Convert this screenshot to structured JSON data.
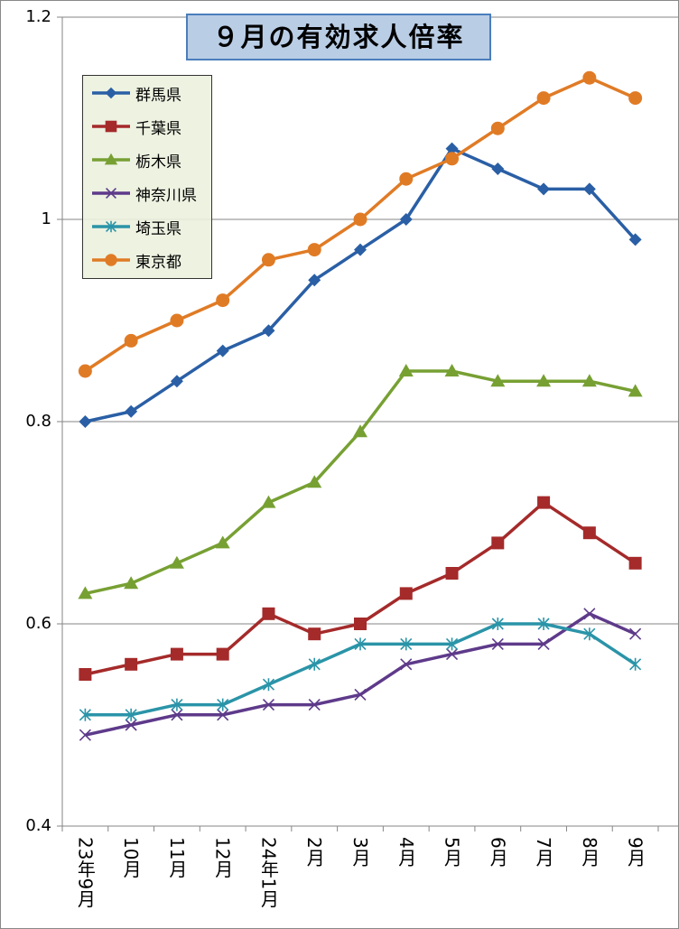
{
  "chart_data": {
    "type": "line",
    "title": "９月の有効求人倍率",
    "categories": [
      "23年9月",
      "10月",
      "11月",
      "12月",
      "24年1月",
      "2月",
      "3月",
      "4月",
      "5月",
      "6月",
      "7月",
      "8月",
      "9月"
    ],
    "ylim": [
      0.4,
      1.2
    ],
    "yticks": [
      "0.4",
      "0.6",
      "0.8",
      "1",
      "1.2"
    ],
    "ytick_values": [
      0.4,
      0.6,
      0.8,
      1.0,
      1.2
    ],
    "grid": true,
    "legend_position": "top-left",
    "series": [
      {
        "name": "群馬県",
        "color": "#2a5fa5",
        "marker": "diamond",
        "values": [
          0.8,
          0.81,
          0.84,
          0.87,
          0.89,
          0.94,
          0.97,
          1.0,
          1.07,
          1.05,
          1.03,
          1.03,
          0.98
        ]
      },
      {
        "name": "千葉県",
        "color": "#a52a2a",
        "marker": "square",
        "values": [
          0.55,
          0.56,
          0.57,
          0.57,
          0.61,
          0.59,
          0.6,
          0.63,
          0.65,
          0.68,
          0.72,
          0.69,
          0.66
        ]
      },
      {
        "name": "栃木県",
        "color": "#77a033",
        "marker": "triangle",
        "values": [
          0.63,
          0.64,
          0.66,
          0.68,
          0.72,
          0.74,
          0.79,
          0.85,
          0.85,
          0.84,
          0.84,
          0.84,
          0.83
        ]
      },
      {
        "name": "神奈川県",
        "color": "#5e3a8a",
        "marker": "x",
        "values": [
          0.49,
          0.5,
          0.51,
          0.51,
          0.52,
          0.52,
          0.53,
          0.56,
          0.57,
          0.58,
          0.58,
          0.61,
          0.59
        ]
      },
      {
        "name": "埼玉県",
        "color": "#2a94a8",
        "marker": "star",
        "values": [
          0.51,
          0.51,
          0.52,
          0.52,
          0.54,
          0.56,
          0.58,
          0.58,
          0.58,
          0.6,
          0.6,
          0.59,
          0.56
        ]
      },
      {
        "name": "東京都",
        "color": "#e07b25",
        "marker": "circle",
        "values": [
          0.85,
          0.88,
          0.9,
          0.92,
          0.96,
          0.97,
          1.0,
          1.04,
          1.06,
          1.09,
          1.12,
          1.14,
          1.12
        ]
      }
    ]
  }
}
